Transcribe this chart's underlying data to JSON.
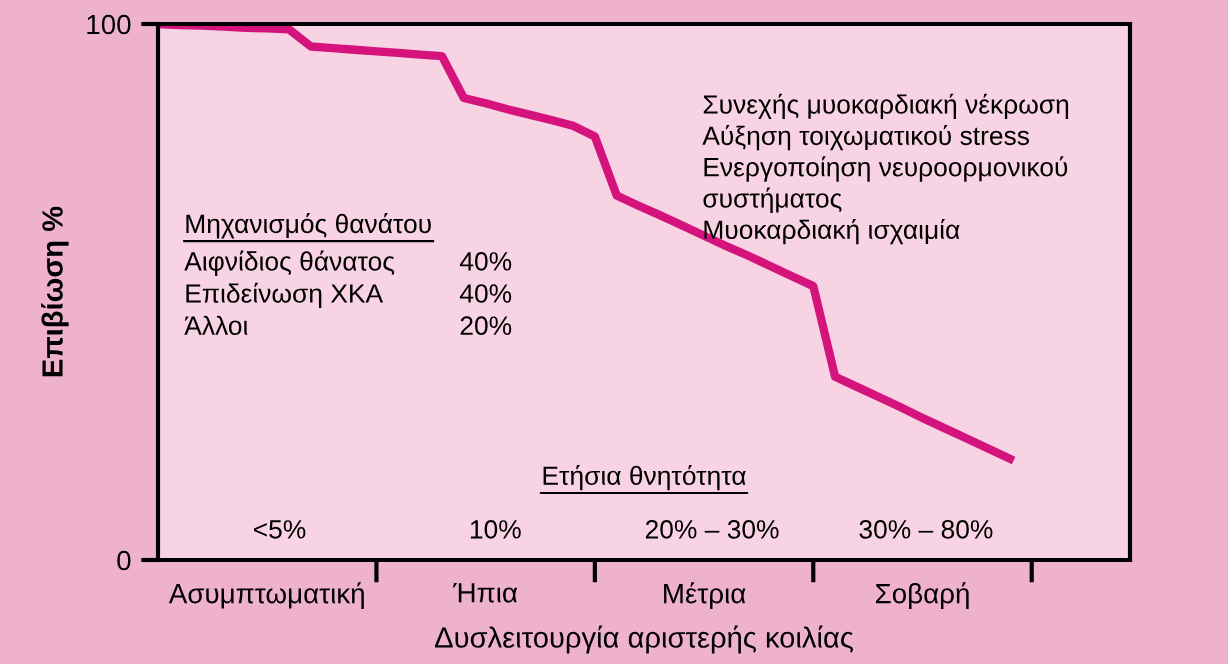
{
  "chart_data": {
    "type": "line",
    "xlabel": "Δυσλειτουργία αριστερής κοιλίας",
    "ylabel": "Επιβίωση %",
    "categories": [
      null,
      null,
      null,
      null,
      null,
      "Ασυμπτωματική",
      null,
      null,
      null,
      null,
      null,
      null,
      null,
      null,
      null,
      "Ήπια",
      null,
      null,
      null,
      null,
      null,
      null,
      null,
      null,
      null,
      "Μέτρια",
      null,
      null,
      null,
      null,
      null,
      null,
      null,
      null,
      null,
      "Σοβαρή",
      null,
      null,
      null,
      null,
      null,
      null,
      null,
      null,
      null
    ],
    "series": [
      {
        "color": "#d4147c",
        "values": [
          100,
          99.8,
          99.7,
          99.5,
          99.3,
          99.2,
          99,
          95.8,
          95.5,
          95.2,
          94.9,
          94.6,
          94.3,
          94,
          86.2,
          85.2,
          84.1,
          83.1,
          82.1,
          81,
          79,
          68,
          66.1,
          64.3,
          62.4,
          60.5,
          58.6,
          56.8,
          54.9,
          53,
          51.1,
          34.2,
          32.3,
          30.4,
          28.5,
          26.5,
          24.6,
          22.7,
          20.8,
          18.9,
          null,
          null,
          null,
          null,
          null
        ]
      }
    ],
    "ylim": [
      0,
      100
    ],
    "yticks": [
      0,
      100
    ],
    "grid": false,
    "legend": false,
    "marker": "none",
    "line_style": "solid",
    "annotations": [
      "Μηχανισμός θανάτου",
      "Αιφνίδιος θάνατος",
      "40%",
      "Επιδείνωση ΧΚΑ",
      "40%",
      "Άλλοι",
      "20%",
      "Συνεχής μυοκαρδιακή νέκρωση\nΑύξηση τοιχωματικού stress\nΕνεργοποίηση νευροορμονικού\nσυστήματος\nΜυοκαρδιακή ισχαιμία",
      "Ετήσια θνητότητα",
      "<5%",
      "10%",
      "20% – 30%",
      "30% – 80%"
    ]
  }
}
